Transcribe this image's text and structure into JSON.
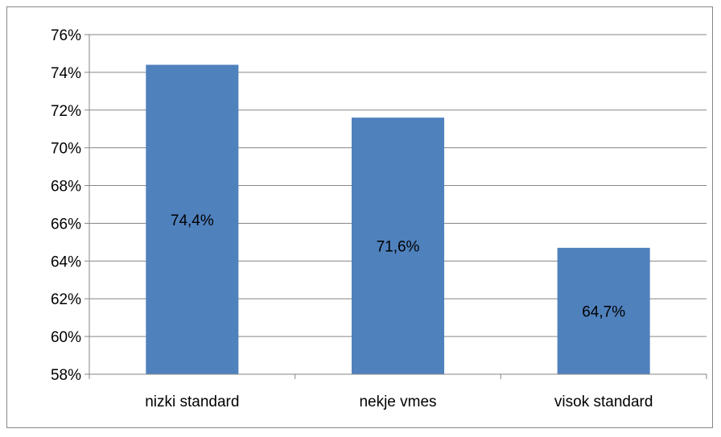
{
  "chart_data": {
    "type": "bar",
    "categories": [
      "nizki standard",
      "nekje vmes",
      "visok standard"
    ],
    "values": [
      74.4,
      71.6,
      64.7
    ],
    "data_labels": [
      "74,4%",
      "71,6%",
      "64,7%"
    ],
    "ylim": [
      58,
      76
    ],
    "ytick_step": 2,
    "ytick_labels": [
      "58%",
      "60%",
      "62%",
      "64%",
      "66%",
      "68%",
      "70%",
      "72%",
      "74%",
      "76%"
    ],
    "title": "",
    "xlabel": "",
    "ylabel": "",
    "grid": true,
    "legend": "none",
    "bar_color": "#4F81BD"
  }
}
